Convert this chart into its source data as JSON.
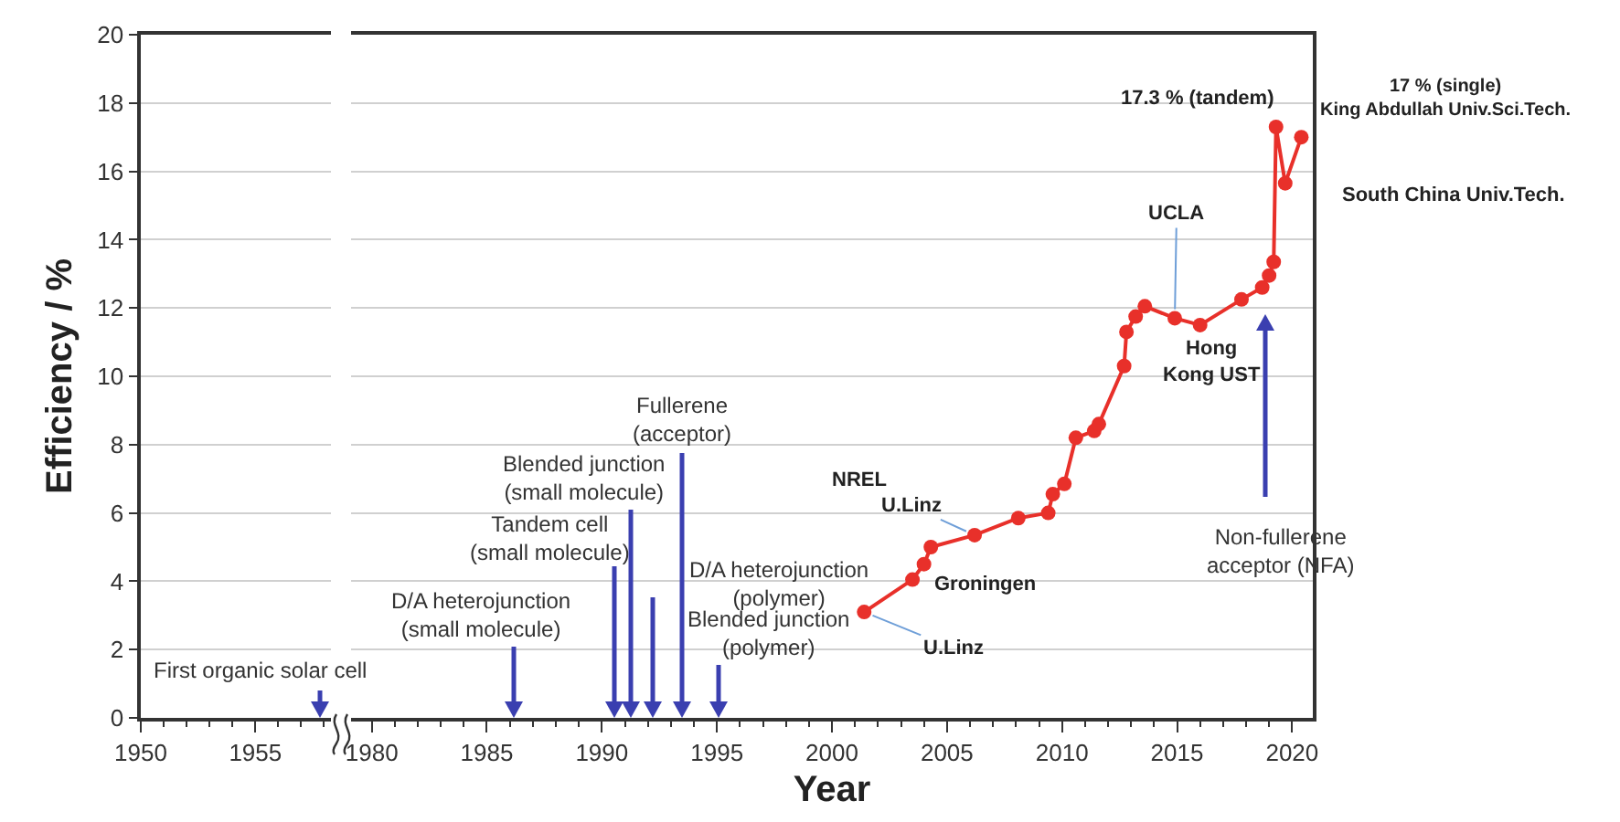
{
  "chart_data": [
    {
      "type": "line",
      "xlim": [
        1950,
        1958.3
      ],
      "xticks": [
        1950,
        1955
      ],
      "ylim": [
        0,
        20
      ],
      "yticks": [
        0,
        2,
        4,
        6,
        8,
        10,
        12,
        14,
        16,
        18,
        20
      ],
      "ylabel": "Efficiency / %",
      "grid": "y",
      "annotations": [
        "First organic solar cell"
      ]
    },
    {
      "type": "line",
      "xlim": [
        1979.1,
        2020.9
      ],
      "xticks": [
        1980,
        1985,
        1990,
        1995,
        2000,
        2005,
        2010,
        2015,
        2020
      ],
      "ylim": [
        0,
        20
      ],
      "yticks": [
        0,
        2,
        4,
        6,
        8,
        10,
        12,
        14,
        16,
        18,
        20
      ],
      "tick_labels": "x",
      "xlabel": "Year",
      "grid": "y",
      "marker": "circle",
      "line_style": "solid",
      "series": [
        {
          "color": "#e8302a",
          "x": [
            2001.4,
            2003.5,
            2004.0,
            2004.3,
            2006.2,
            2008.1,
            2009.4,
            2009.6,
            2010.1,
            2010.6,
            2011.4,
            2011.6,
            2012.7,
            2012.8,
            2013.2,
            2013.6,
            2014.9,
            2016.0,
            2017.8,
            2018.7,
            2019.0,
            2019.2,
            2019.3,
            2019.7,
            2020.4
          ],
          "values": [
            3.1,
            4.05,
            4.5,
            5.0,
            5.35,
            5.85,
            6.0,
            6.55,
            6.85,
            8.2,
            8.4,
            8.6,
            10.3,
            11.3,
            11.75,
            12.05,
            11.7,
            11.5,
            12.25,
            12.6,
            12.95,
            13.35,
            17.3,
            15.65,
            17.0
          ]
        }
      ],
      "annotations": [
        "D/A heterojunction\n(small molecule)",
        "Tandem cell\n(small molecule)",
        "Blended junction\n(small molecule)",
        "D/A heterojunction\n(polymer)",
        "Fullerene\n(acceptor)",
        "Blended junction\n(polymer)",
        "Non-fullerene\nacceptor (NFA)",
        {
          "text": "U.Linz",
          "x": 2001.4,
          "y": 3.1
        },
        {
          "text": "Groningen",
          "x": 2004.0,
          "y": 4.5
        },
        "NREL",
        {
          "text": "U.Linz",
          "x": 2006.2,
          "y": 5.35
        },
        {
          "text": "UCLA",
          "x": 2014.9,
          "y": 11.7
        },
        {
          "text": "Hong\nKong UST",
          "x": 2016.0,
          "y": 11.5
        },
        {
          "text": "17.3 % (tandem)",
          "x": 2019.3,
          "y": 17.3
        },
        {
          "text": "17 % (single)\nKing Abdullah Univ.Sci.Tech.",
          "x": 2020.4,
          "y": 17.0
        },
        {
          "text": "South China Univ.Tech.",
          "x": 2019.7,
          "y": 15.65
        }
      ]
    }
  ]
}
